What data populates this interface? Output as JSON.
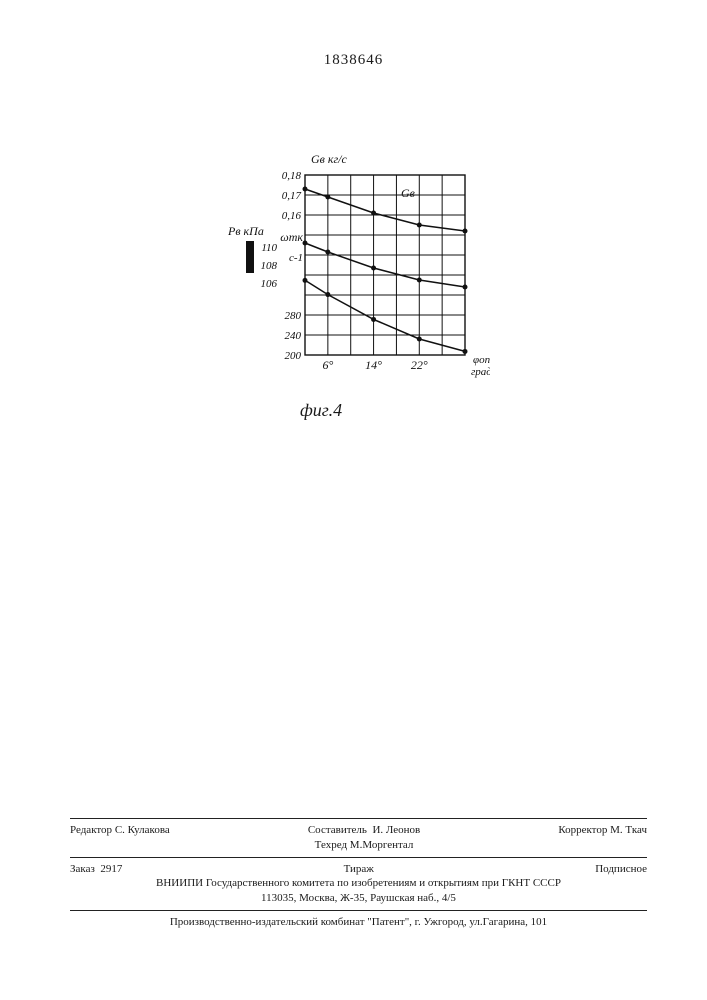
{
  "docNumber": "1838646",
  "figureCaption": "фиг.4",
  "chart": {
    "type": "line",
    "background_color": "#ffffff",
    "grid_color": "#111111",
    "axis_color": "#111111",
    "axis_line_width": 1.4,
    "grid_line_width": 1,
    "marker_style": "circle",
    "marker_size": 5,
    "line_width": 1.5,
    "line_color": "#111111",
    "seriesLabel": "Gв",
    "x": {
      "label": "φоп град",
      "ticks": [
        "6°",
        "14°",
        "22°"
      ],
      "tick_values": [
        6,
        14,
        22
      ],
      "min": 2,
      "max": 30,
      "fontsize": 12
    },
    "yAxes": [
      {
        "id": "G",
        "title": "Gв кг/с",
        "title_fontsize": 12,
        "ticks": [
          "0,18",
          "0,17",
          "0,16"
        ],
        "tick_values": [
          0.18,
          0.17,
          0.16
        ],
        "min": 0.155,
        "max": 0.185
      },
      {
        "id": "P",
        "title": "Pв кПа",
        "title_fontsize": 12,
        "bar": true,
        "ticks": [
          "110",
          "108",
          "106"
        ],
        "tick_values": [
          110,
          108,
          106
        ],
        "min": 105,
        "max": 111
      },
      {
        "id": "omega",
        "title": "ωтк с-1",
        "title_fontsize": 12,
        "ticks": [
          "280",
          "240",
          "200"
        ],
        "tick_values": [
          280,
          240,
          200
        ],
        "min": 200,
        "max": 290
      }
    ],
    "series": [
      {
        "axis": "G",
        "points": [
          {
            "x": 2,
            "y": 0.178
          },
          {
            "x": 6,
            "y": 0.174
          },
          {
            "x": 14,
            "y": 0.166
          },
          {
            "x": 22,
            "y": 0.16
          },
          {
            "x": 30,
            "y": 0.157
          }
        ]
      },
      {
        "axis": "P",
        "points": [
          {
            "x": 2,
            "y": 110.2
          },
          {
            "x": 6,
            "y": 109.3
          },
          {
            "x": 14,
            "y": 107.7
          },
          {
            "x": 22,
            "y": 106.5
          },
          {
            "x": 30,
            "y": 105.8
          }
        ]
      },
      {
        "axis": "omega",
        "points": [
          {
            "x": 2,
            "y": 284
          },
          {
            "x": 6,
            "y": 268
          },
          {
            "x": 14,
            "y": 240
          },
          {
            "x": 22,
            "y": 218
          },
          {
            "x": 30,
            "y": 204
          }
        ]
      }
    ]
  },
  "footer": {
    "editor_label": "Редактор",
    "editor_name": "С. Кулакова",
    "compiler_label": "Составитель",
    "compiler_name": "И. Леонов",
    "techred_label": "Техред",
    "techred_name": "М.Моргентал",
    "corrector_label": "Корректор",
    "corrector_name": "М. Ткач",
    "order_label": "Заказ",
    "order_no": "2917",
    "tirazh": "Тираж",
    "subscription": "Подписное",
    "org_line1": "ВНИИПИ Государственного комитета по изобретениям и открытиям при ГКНТ СССР",
    "org_line2": "113035, Москва, Ж-35, Раушская наб., 4/5",
    "printer": "Производственно-издательский комбинат \"Патент\", г. Ужгород, ул.Гагарина, 101"
  }
}
